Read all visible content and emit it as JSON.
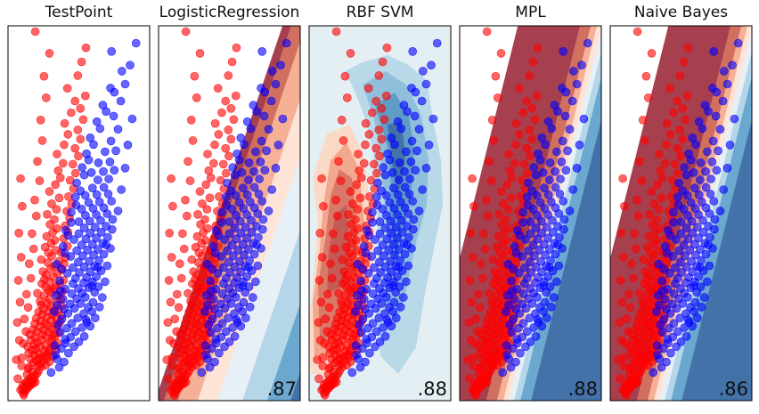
{
  "chart_data": [
    {
      "type": "scatter",
      "title": "TestPoint",
      "score": "",
      "boundary": "none"
    },
    {
      "type": "scatter",
      "title": "LogisticRegression",
      "score": ".87",
      "boundary": "linear"
    },
    {
      "type": "scatter",
      "title": "RBF SVM",
      "score": ".88",
      "boundary": "rbf"
    },
    {
      "type": "scatter",
      "title": "MPL",
      "score": ".88",
      "boundary": "linear-sharp"
    },
    {
      "type": "scatter",
      "title": "Naive Bayes",
      "score": ".86",
      "boundary": "linear-sharp"
    }
  ],
  "series": [
    {
      "color": "#ff0000",
      "points": [
        [
          0.8,
          1.2
        ],
        [
          1.1,
          2.0
        ],
        [
          0.6,
          3.1
        ],
        [
          0.9,
          0.4
        ],
        [
          1.3,
          2.9
        ],
        [
          0.3,
          2.6
        ],
        [
          1.6,
          3.4
        ],
        [
          1.5,
          4.1
        ],
        [
          1.9,
          5.0
        ],
        [
          1.2,
          5.6
        ],
        [
          2.4,
          6.6
        ],
        [
          0.7,
          4.6
        ],
        [
          1.0,
          4.0
        ],
        [
          2.0,
          4.4
        ],
        [
          2.6,
          5.4
        ],
        [
          1.4,
          6.0
        ],
        [
          2.2,
          6.1
        ],
        [
          3.0,
          6.0
        ],
        [
          1.8,
          7.1
        ],
        [
          2.8,
          7.3
        ],
        [
          2.3,
          8.2
        ],
        [
          1.5,
          9.3
        ],
        [
          3.3,
          9.6
        ],
        [
          2.5,
          10.5
        ],
        [
          1.7,
          11.8
        ],
        [
          0.5,
          13.0
        ],
        [
          1.9,
          12.4
        ],
        [
          3.5,
          13.2
        ],
        [
          2.7,
          14.4
        ],
        [
          4.0,
          14.0
        ],
        [
          3.2,
          15.1
        ],
        [
          2.1,
          16.0
        ],
        [
          4.6,
          15.5
        ],
        [
          3.7,
          16.4
        ],
        [
          5.2,
          16.6
        ],
        [
          2.9,
          17.6
        ],
        [
          4.4,
          17.0
        ],
        [
          1.8,
          18.5
        ],
        [
          3.6,
          18.2
        ],
        [
          5.1,
          18.0
        ],
        [
          2.4,
          19.8
        ],
        [
          4.7,
          19.5
        ],
        [
          3.1,
          20.4
        ],
        [
          5.6,
          20.2
        ],
        [
          1.6,
          21.3
        ],
        [
          3.9,
          21.2
        ],
        [
          2.8,
          22.3
        ],
        [
          4.9,
          22.0
        ],
        [
          6.3,
          21.6
        ],
        [
          3.4,
          23.2
        ],
        [
          5.8,
          23.5
        ],
        [
          2.2,
          24.2
        ],
        [
          4.2,
          24.4
        ],
        [
          6.1,
          24.6
        ],
        [
          3.0,
          25.3
        ],
        [
          5.0,
          25.7
        ],
        [
          2.0,
          26.6
        ],
        [
          4.3,
          26.5
        ],
        [
          6.4,
          26.7
        ],
        [
          3.3,
          27.7
        ],
        [
          5.5,
          27.6
        ],
        [
          2.6,
          28.8
        ],
        [
          4.5,
          28.6
        ],
        [
          6.0,
          29.0
        ],
        [
          3.8,
          30.0
        ],
        [
          5.3,
          30.4
        ],
        [
          2.9,
          31.2
        ],
        [
          4.8,
          31.5
        ],
        [
          6.7,
          31.0
        ],
        [
          4.0,
          32.5
        ],
        [
          5.9,
          32.7
        ],
        [
          3.2,
          33.6
        ],
        [
          5.1,
          34.0
        ],
        [
          4.3,
          35.2
        ],
        [
          6.2,
          35.1
        ],
        [
          3.6,
          36.3
        ],
        [
          5.4,
          36.5
        ],
        [
          4.5,
          37.7
        ],
        [
          5.8,
          38.6
        ],
        [
          6.5,
          37.3
        ],
        [
          4.1,
          39.4
        ],
        [
          5.2,
          40.1
        ],
        [
          3.9,
          41.0
        ],
        [
          5.6,
          42.0
        ],
        [
          4.6,
          43.4
        ],
        [
          3.4,
          44.4
        ],
        [
          6.0,
          44.9
        ],
        [
          5.5,
          45.8
        ],
        [
          4.9,
          47.0
        ],
        [
          6.4,
          46.4
        ],
        [
          4.2,
          48.6
        ],
        [
          5.7,
          49.3
        ],
        [
          4.7,
          50.4
        ],
        [
          6.3,
          51.5
        ],
        [
          5.0,
          52.3
        ],
        [
          4.4,
          53.8
        ],
        [
          5.8,
          55.0
        ],
        [
          6.5,
          56.1
        ],
        [
          5.3,
          57.7
        ],
        [
          4.1,
          59.0
        ],
        [
          6.0,
          60.4
        ],
        [
          5.4,
          61.9
        ],
        [
          6.8,
          63.0
        ],
        [
          4.8,
          64.3
        ],
        [
          5.9,
          66.0
        ],
        [
          6.6,
          67.3
        ],
        [
          5.1,
          69.0
        ],
        [
          6.2,
          70.7
        ],
        [
          7.0,
          72.4
        ],
        [
          5.7,
          74.2
        ],
        [
          6.5,
          76.3
        ],
        [
          5.2,
          78.5
        ],
        [
          6.9,
          80.7
        ],
        [
          6.0,
          83.1
        ],
        [
          7.4,
          85.6
        ],
        [
          5.6,
          88.4
        ],
        [
          6.7,
          91.4
        ],
        [
          7.6,
          94.3
        ],
        [
          7.2,
          97.4
        ],
        [
          8.1,
          100.6
        ],
        [
          7.0,
          104.6
        ],
        [
          8.3,
          108.6
        ],
        [
          9.0,
          113.1
        ],
        [
          8.4,
          117.8
        ],
        [
          9.6,
          122.5
        ],
        [
          10.3,
          127.5
        ],
        [
          8.9,
          133.0
        ],
        [
          10.8,
          138.5
        ],
        [
          11.5,
          144.4
        ],
        [
          12.3,
          150.5
        ],
        [
          2.2,
          5.2
        ],
        [
          2.9,
          8.8
        ],
        [
          3.6,
          10.9
        ],
        [
          4.1,
          12.6
        ],
        [
          4.9,
          13.3
        ],
        [
          5.6,
          14.8
        ],
        [
          6.2,
          17.3
        ],
        [
          5.4,
          19.2
        ],
        [
          6.8,
          19.9
        ],
        [
          7.1,
          22.8
        ],
        [
          6.6,
          25.8
        ],
        [
          7.3,
          27.2
        ],
        [
          7.0,
          29.8
        ],
        [
          7.6,
          32.1
        ],
        [
          6.8,
          33.9
        ],
        [
          7.8,
          34.7
        ],
        [
          7.2,
          36.8
        ],
        [
          7.9,
          38.8
        ],
        [
          6.9,
          40.5
        ],
        [
          7.7,
          41.8
        ],
        [
          7.3,
          43.6
        ],
        [
          8.0,
          45.2
        ],
        [
          6.8,
          47.6
        ],
        [
          7.5,
          48.8
        ],
        [
          8.2,
          50.0
        ],
        [
          7.1,
          52.9
        ],
        [
          7.9,
          54.6
        ],
        [
          8.3,
          57.0
        ],
        [
          7.4,
          58.3
        ],
        [
          8.6,
          59.9
        ],
        [
          7.8,
          62.0
        ],
        [
          8.9,
          64.8
        ],
        [
          8.2,
          68.1
        ],
        [
          9.0,
          70.9
        ],
        [
          8.5,
          73.6
        ],
        [
          9.3,
          76.9
        ],
        [
          8.8,
          79.9
        ],
        [
          9.7,
          83.0
        ],
        [
          9.1,
          86.2
        ],
        [
          10.0,
          89.6
        ],
        [
          9.4,
          93.2
        ],
        [
          10.4,
          96.3
        ],
        [
          9.9,
          100.2
        ],
        [
          10.9,
          103.7
        ],
        [
          10.3,
          107.0
        ],
        [
          11.3,
          111.0
        ],
        [
          10.8,
          115.0
        ],
        [
          11.8,
          119.5
        ],
        [
          11.3,
          124.3
        ],
        [
          12.2,
          129.7
        ],
        [
          0.5,
          16.5
        ],
        [
          0.8,
          22.7
        ],
        [
          1.3,
          27.9
        ],
        [
          1.0,
          33.3
        ],
        [
          1.7,
          38.3
        ],
        [
          1.4,
          44.0
        ],
        [
          2.2,
          50.9
        ],
        [
          1.9,
          57.2
        ],
        [
          2.7,
          63.6
        ],
        [
          2.4,
          70.2
        ],
        [
          3.2,
          77.8
        ],
        [
          2.9,
          84.7
        ],
        [
          3.8,
          93.0
        ],
        [
          3.4,
          101.4
        ],
        [
          4.3,
          110.4
        ],
        [
          4.0,
          119.3
        ],
        [
          5.0,
          128.9
        ],
        [
          4.6,
          138.2
        ],
        [
          5.6,
          148.1
        ],
        [
          3.0,
          157.5
        ],
        [
          -0.2,
          7.5
        ],
        [
          -0.5,
          15.7
        ],
        [
          0.1,
          24.1
        ],
        [
          -0.3,
          31.8
        ],
        [
          0.2,
          40.6
        ],
        [
          -0.1,
          50.0
        ],
        [
          0.4,
          60.0
        ],
        [
          0.0,
          70.4
        ],
        [
          0.6,
          82.0
        ],
        [
          0.3,
          94.0
        ]
      ]
    },
    {
      "color": "#0000ff",
      "points": [
        [
          5.9,
          10.2
        ],
        [
          7.4,
          12.4
        ],
        [
          8.3,
          14.7
        ],
        [
          6.7,
          17.8
        ],
        [
          9.1,
          18.5
        ],
        [
          7.8,
          20.6
        ],
        [
          10.1,
          21.3
        ],
        [
          8.6,
          22.9
        ],
        [
          11.0,
          23.4
        ],
        [
          9.5,
          25.5
        ],
        [
          12.0,
          25.8
        ],
        [
          7.6,
          27.6
        ],
        [
          10.4,
          27.9
        ],
        [
          8.8,
          29.3
        ],
        [
          11.6,
          29.6
        ],
        [
          13.1,
          30.2
        ],
        [
          9.7,
          31.4
        ],
        [
          12.5,
          31.9
        ],
        [
          7.9,
          33.3
        ],
        [
          10.8,
          33.7
        ],
        [
          14.0,
          33.7
        ],
        [
          9.0,
          35.7
        ],
        [
          11.9,
          35.6
        ],
        [
          13.4,
          36.5
        ],
        [
          8.3,
          37.6
        ],
        [
          10.2,
          37.9
        ],
        [
          12.7,
          38.4
        ],
        [
          14.8,
          38.5
        ],
        [
          9.4,
          39.8
        ],
        [
          11.3,
          40.0
        ],
        [
          13.6,
          40.5
        ],
        [
          8.1,
          41.9
        ],
        [
          10.6,
          42.1
        ],
        [
          12.2,
          42.7
        ],
        [
          15.3,
          42.6
        ],
        [
          9.7,
          44.2
        ],
        [
          11.6,
          44.5
        ],
        [
          13.9,
          44.8
        ],
        [
          8.5,
          46.2
        ],
        [
          10.9,
          46.5
        ],
        [
          12.8,
          46.8
        ],
        [
          14.6,
          47.2
        ],
        [
          9.9,
          48.6
        ],
        [
          11.9,
          48.9
        ],
        [
          13.5,
          49.3
        ],
        [
          15.8,
          49.4
        ],
        [
          10.4,
          50.9
        ],
        [
          12.4,
          51.2
        ],
        [
          14.2,
          51.6
        ],
        [
          8.9,
          53.1
        ],
        [
          11.1,
          53.4
        ],
        [
          13.1,
          53.7
        ],
        [
          15.1,
          54.1
        ],
        [
          9.9,
          55.5
        ],
        [
          12.0,
          55.8
        ],
        [
          13.9,
          56.1
        ],
        [
          16.2,
          56.3
        ],
        [
          10.9,
          57.9
        ],
        [
          12.9,
          58.2
        ],
        [
          14.7,
          58.6
        ],
        [
          9.5,
          60.3
        ],
        [
          11.7,
          60.6
        ],
        [
          13.7,
          60.9
        ],
        [
          15.6,
          61.3
        ],
        [
          10.6,
          62.8
        ],
        [
          12.6,
          63.1
        ],
        [
          14.5,
          63.4
        ],
        [
          16.8,
          63.8
        ],
        [
          11.5,
          65.3
        ],
        [
          13.5,
          65.6
        ],
        [
          15.4,
          66.0
        ],
        [
          10.1,
          67.6
        ],
        [
          12.3,
          67.9
        ],
        [
          14.2,
          68.3
        ],
        [
          16.3,
          68.6
        ],
        [
          11.0,
          70.2
        ],
        [
          13.1,
          70.5
        ],
        [
          15.1,
          70.8
        ],
        [
          12.0,
          72.7
        ],
        [
          14.0,
          73.0
        ],
        [
          16.0,
          73.4
        ],
        [
          11.0,
          75.3
        ],
        [
          13.0,
          75.6
        ],
        [
          15.0,
          75.9
        ],
        [
          17.2,
          76.3
        ],
        [
          12.2,
          78.1
        ],
        [
          14.2,
          78.4
        ],
        [
          16.2,
          78.8
        ],
        [
          11.5,
          80.8
        ],
        [
          13.6,
          81.1
        ],
        [
          15.6,
          81.4
        ],
        [
          12.8,
          83.6
        ],
        [
          14.8,
          83.9
        ],
        [
          17.0,
          84.2
        ],
        [
          12.2,
          86.7
        ],
        [
          14.3,
          87.0
        ],
        [
          16.4,
          87.3
        ],
        [
          13.5,
          89.9
        ],
        [
          15.6,
          90.2
        ],
        [
          14.5,
          93.4
        ],
        [
          16.5,
          93.8
        ],
        [
          13.3,
          96.6
        ],
        [
          15.5,
          97.0
        ],
        [
          17.5,
          97.6
        ],
        [
          14.6,
          100.8
        ],
        [
          16.7,
          101.2
        ],
        [
          15.8,
          105.6
        ],
        [
          17.8,
          106.0
        ],
        [
          16.9,
          110.2
        ],
        [
          18.2,
          115.3
        ],
        [
          17.4,
          121.0
        ],
        [
          18.7,
          127.5
        ],
        [
          19.5,
          134.8
        ],
        [
          20.4,
          143.0
        ],
        [
          21.5,
          152.5
        ],
        [
          7.0,
          16.0
        ],
        [
          8.5,
          24.5
        ],
        [
          7.2,
          30.8
        ],
        [
          6.5,
          36.4
        ],
        [
          6.8,
          43.5
        ],
        [
          7.5,
          49.7
        ],
        [
          6.9,
          57.0
        ],
        [
          8.1,
          64.6
        ],
        [
          8.6,
          71.6
        ],
        [
          9.6,
          79.4
        ],
        [
          10.4,
          86.0
        ],
        [
          10.6,
          92.1
        ],
        [
          11.6,
          98.8
        ],
        [
          12.4,
          104.7
        ],
        [
          13.1,
          111.6
        ],
        [
          14.3,
          118.6
        ],
        [
          15.4,
          125.7
        ],
        [
          16.8,
          133.1
        ],
        [
          6.6,
          21.8
        ],
        [
          7.0,
          39.4
        ],
        [
          7.6,
          45.4
        ],
        [
          7.8,
          55.0
        ],
        [
          8.4,
          61.8
        ],
        [
          9.0,
          69.4
        ],
        [
          9.6,
          75.0
        ],
        [
          10.5,
          82.5
        ],
        [
          11.3,
          88.7
        ],
        [
          12.0,
          95.5
        ],
        [
          12.8,
          102.0
        ],
        [
          13.7,
          108.7
        ],
        [
          14.9,
          115.6
        ],
        [
          16.0,
          123.0
        ],
        [
          17.5,
          131.3
        ],
        [
          18.9,
          140.4
        ],
        [
          17.0,
          148.9
        ],
        [
          12.3,
          33.0
        ],
        [
          13.4,
          47.6
        ],
        [
          14.5,
          55.6
        ],
        [
          16.0,
          65.3
        ],
        [
          17.1,
          72.0
        ],
        [
          18.2,
          80.0
        ],
        [
          18.8,
          89.2
        ],
        [
          19.5,
          98.5
        ],
        [
          20.0,
          108.5
        ],
        [
          20.8,
          119.8
        ]
      ]
    }
  ]
}
